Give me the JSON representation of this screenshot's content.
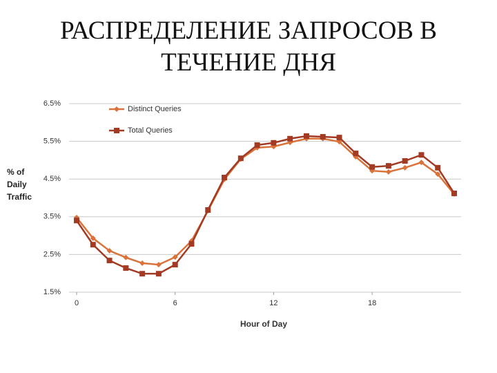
{
  "chart_data": {
    "type": "line",
    "title": "РАСПРЕДЕЛЕНИЕ ЗАПРОСОВ В ТЕЧЕНИЕ ДНЯ",
    "xlabel": "Hour of Day",
    "ylabel": "% of Daily Traffic",
    "x": [
      0,
      1,
      2,
      3,
      4,
      5,
      6,
      7,
      8,
      9,
      10,
      11,
      12,
      13,
      14,
      15,
      16,
      17,
      18,
      19,
      20,
      21,
      22,
      23
    ],
    "series": [
      {
        "name": "Distinct Queries",
        "color": "#d9733a",
        "marker": "diamond",
        "values": [
          3.48,
          2.93,
          2.6,
          2.42,
          2.27,
          2.23,
          2.43,
          2.86,
          3.66,
          4.49,
          5.03,
          5.33,
          5.36,
          5.47,
          5.57,
          5.57,
          5.49,
          5.09,
          4.72,
          4.69,
          4.8,
          4.94,
          4.63,
          4.1
        ]
      },
      {
        "name": "Total Queries",
        "color": "#a33a24",
        "marker": "square",
        "values": [
          3.4,
          2.76,
          2.34,
          2.14,
          1.99,
          1.99,
          2.23,
          2.78,
          3.68,
          4.54,
          5.05,
          5.4,
          5.46,
          5.57,
          5.64,
          5.62,
          5.6,
          5.18,
          4.82,
          4.85,
          4.98,
          5.14,
          4.8,
          4.12
        ]
      }
    ],
    "xlim": [
      0,
      23
    ],
    "xticks": [
      0,
      6,
      12,
      18
    ],
    "ylim": [
      1.5,
      6.5
    ],
    "yticks": [
      {
        "value": 1.5,
        "label": "1.5%"
      },
      {
        "value": 2.5,
        "label": "2.5%"
      },
      {
        "value": 3.5,
        "label": "3.5%"
      },
      {
        "value": 4.5,
        "label": "4.5%"
      },
      {
        "value": 5.5,
        "label": "5.5%"
      },
      {
        "value": 6.5,
        "label": "6.5%"
      }
    ],
    "grid": true,
    "legend": "top-left"
  }
}
